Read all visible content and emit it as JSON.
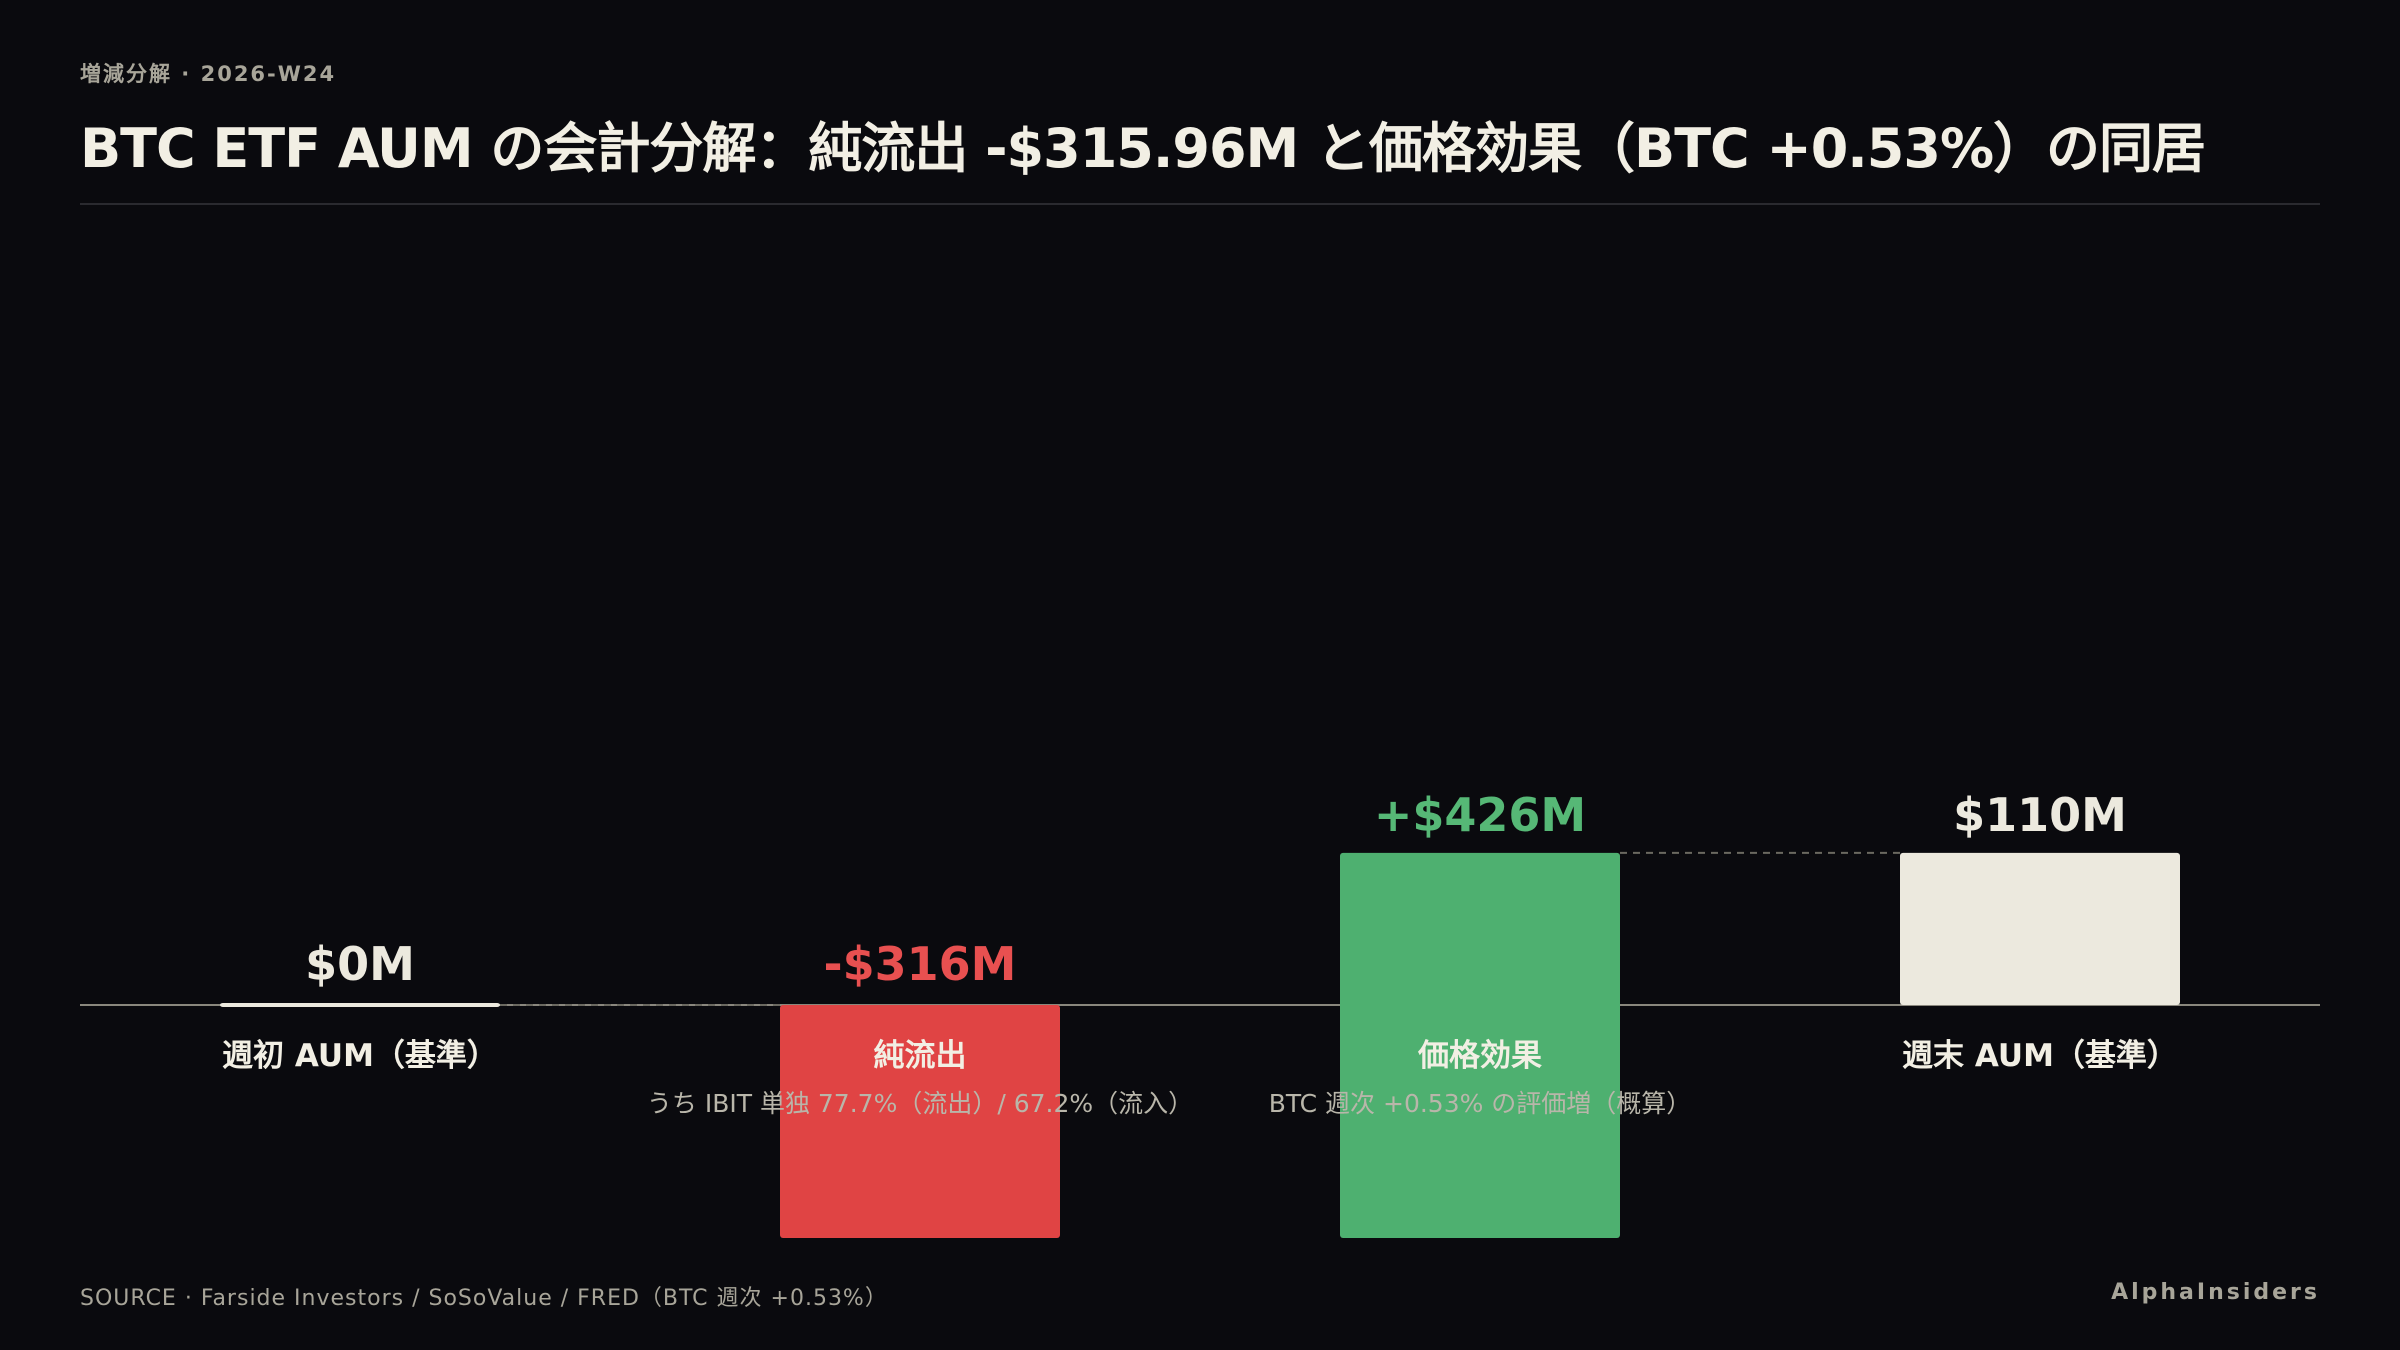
{
  "header": {
    "kicker": "増減分解 · 2026-W24",
    "title": "BTC ETF AUM の会計分解：純流出 -$315.96M と価格効果（BTC +0.53%）の同居"
  },
  "footer": {
    "source": "SOURCE · Farside Investors / SoSoValue / FRED（BTC 週次 +0.53%）",
    "brand": "AlphaInsiders"
  },
  "colors": {
    "negative": "#e04444",
    "positive": "#4eb070",
    "total": "#ece9de",
    "label_negative": "#e85050",
    "label_positive": "#56b876",
    "label_total": "#ece9de"
  },
  "chart_data": {
    "type": "waterfall",
    "unit": "$M",
    "ylim": [
      -400,
      426
    ],
    "bars": [
      {
        "category": "週初 AUM（基準）",
        "sublabel": "",
        "kind": "total",
        "start": 0,
        "end": 0,
        "value_label": "$0M"
      },
      {
        "category": "純流出",
        "sublabel": "うち IBIT 単独 77.7%（流出）/ 67.2%（流入）",
        "kind": "negative",
        "start": 0,
        "end": -316,
        "value_label": "-$316M"
      },
      {
        "category": "価格効果",
        "sublabel": "BTC 週次 +0.53% の評価増（概算）",
        "kind": "positive",
        "start": -316,
        "end": 110,
        "value_label": "+$426M"
      },
      {
        "category": "週末 AUM（基準）",
        "sublabel": "",
        "kind": "total",
        "start": 0,
        "end": 110,
        "value_label": "$110M"
      }
    ]
  }
}
